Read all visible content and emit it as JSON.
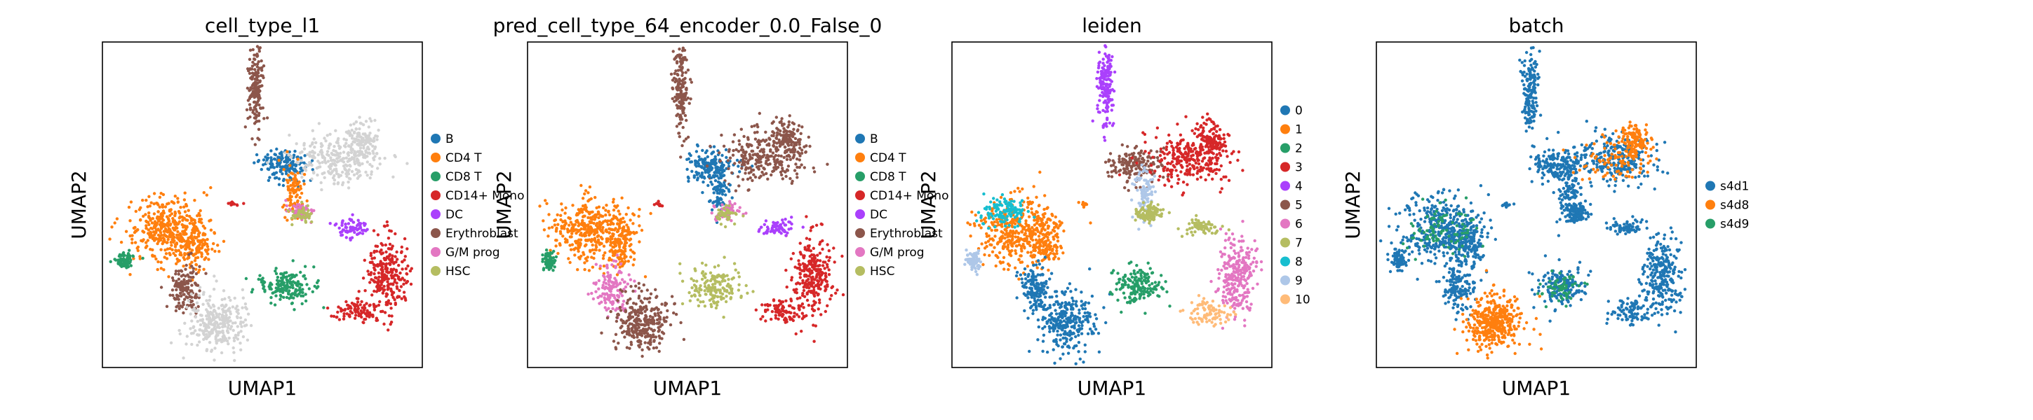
{
  "chart_data": [
    {
      "type": "scatter",
      "title": "cell_type_l1",
      "xlabel": "UMAP1",
      "ylabel": "UMAP2",
      "grid": false,
      "legend_position": "right",
      "legend": [
        {
          "label": "B",
          "color": "#1f77b4"
        },
        {
          "label": "CD4 T",
          "color": "#ff7f0e"
        },
        {
          "label": "CD8 T",
          "color": "#279e68"
        },
        {
          "label": "CD14+ Mono",
          "color": "#d62728"
        },
        {
          "label": "DC",
          "color": "#aa40fc"
        },
        {
          "label": "Erythroblast",
          "color": "#8c564b"
        },
        {
          "label": "G/M prog",
          "color": "#e377c2"
        },
        {
          "label": "HSC",
          "color": "#b5bd61"
        }
      ]
    },
    {
      "type": "scatter",
      "title": "pred_cell_type_64_encoder_0.0_False_0",
      "xlabel": "UMAP1",
      "ylabel": "UMAP2",
      "grid": false,
      "legend_position": "right",
      "legend": [
        {
          "label": "B",
          "color": "#1f77b4"
        },
        {
          "label": "CD4 T",
          "color": "#ff7f0e"
        },
        {
          "label": "CD8 T",
          "color": "#279e68"
        },
        {
          "label": "CD14+ Mono",
          "color": "#d62728"
        },
        {
          "label": "DC",
          "color": "#aa40fc"
        },
        {
          "label": "Erythroblast",
          "color": "#8c564b"
        },
        {
          "label": "G/M prog",
          "color": "#e377c2"
        },
        {
          "label": "HSC",
          "color": "#b5bd61"
        }
      ]
    },
    {
      "type": "scatter",
      "title": "leiden",
      "xlabel": "UMAP1",
      "ylabel": "UMAP2",
      "grid": false,
      "legend_position": "right",
      "legend": [
        {
          "label": "0",
          "color": "#1f77b4"
        },
        {
          "label": "1",
          "color": "#ff7f0e"
        },
        {
          "label": "2",
          "color": "#279e68"
        },
        {
          "label": "3",
          "color": "#d62728"
        },
        {
          "label": "4",
          "color": "#aa40fc"
        },
        {
          "label": "5",
          "color": "#8c564b"
        },
        {
          "label": "6",
          "color": "#e377c2"
        },
        {
          "label": "7",
          "color": "#b5bd61"
        },
        {
          "label": "8",
          "color": "#17becf"
        },
        {
          "label": "9",
          "color": "#aec7e8"
        },
        {
          "label": "10",
          "color": "#ffbb78"
        }
      ]
    },
    {
      "type": "scatter",
      "title": "batch",
      "xlabel": "UMAP1",
      "ylabel": "UMAP2",
      "grid": false,
      "legend_position": "right",
      "legend": [
        {
          "label": "s4d1",
          "color": "#1f77b4"
        },
        {
          "label": "s4d8",
          "color": "#ff7f0e"
        },
        {
          "label": "s4d9",
          "color": "#279e68"
        }
      ]
    }
  ]
}
